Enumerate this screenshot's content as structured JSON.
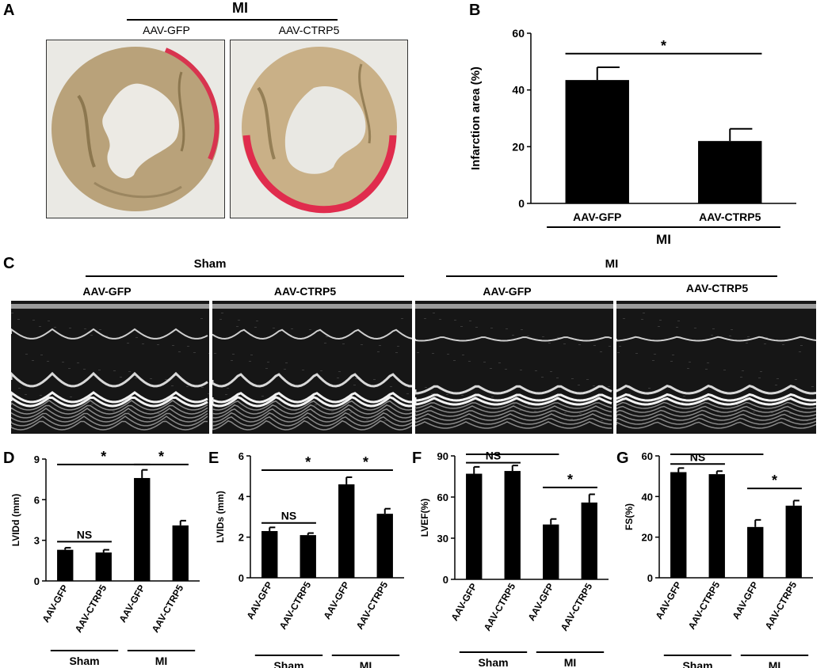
{
  "panels": {
    "A": "A",
    "B": "B",
    "C": "C",
    "D": "D",
    "E": "E",
    "F": "F",
    "G": "G"
  },
  "panel_a": {
    "group": "MI",
    "left_label": "AAV-GFP",
    "right_label": "AAV-CTRP5"
  },
  "panel_c": {
    "group_sham": "Sham",
    "group_mi": "MI",
    "labels": [
      "AAV-GFP",
      "AAV-CTRP5",
      "AAV-GFP",
      "AAV-CTRP5"
    ]
  },
  "chart_data": [
    {
      "panel": "B",
      "type": "bar",
      "categories": [
        "AAV-GFP",
        "AAV-CTRP5"
      ],
      "values": [
        43.5,
        22
      ],
      "errors": [
        4.5,
        4.3
      ],
      "ylabel": "Infarction area (%)",
      "ylim": [
        0,
        60
      ],
      "yticks": [
        0,
        20,
        40,
        60
      ],
      "groups": [
        {
          "label": "MI",
          "span": [
            0,
            1
          ]
        }
      ],
      "annotations": [
        {
          "text": "*",
          "span": [
            0,
            1
          ]
        }
      ]
    },
    {
      "panel": "D",
      "type": "bar",
      "categories": [
        "AAV-GFP",
        "AAV-CTRP5",
        "AAV-GFP",
        "AAV-CTRP5"
      ],
      "values": [
        2.3,
        2.1,
        7.6,
        4.1
      ],
      "errors": [
        0.15,
        0.2,
        0.6,
        0.35
      ],
      "ylabel": "LVIDd (mm)",
      "ylim": [
        0,
        9
      ],
      "yticks": [
        0,
        3,
        6,
        9
      ],
      "groups": [
        {
          "label": "Sham",
          "span": [
            0,
            1
          ]
        },
        {
          "label": "MI",
          "span": [
            2,
            3
          ]
        }
      ],
      "annotations": [
        {
          "text": "NS",
          "span": [
            0,
            1
          ],
          "level": 2.9
        },
        {
          "text": "*",
          "span": [
            0,
            2
          ],
          "level": 8.6
        },
        {
          "text": "*",
          "span": [
            2,
            3
          ],
          "level": 8.6
        }
      ]
    },
    {
      "panel": "E",
      "type": "bar",
      "categories": [
        "AAV-GFP",
        "AAV-CTRP5",
        "AAV-GFP",
        "AAV-CTRP5"
      ],
      "values": [
        2.3,
        2.1,
        4.6,
        3.15
      ],
      "errors": [
        0.18,
        0.1,
        0.35,
        0.25
      ],
      "ylabel": "LVIDs (mm)",
      "ylim": [
        0,
        6
      ],
      "yticks": [
        0,
        2,
        4,
        6
      ],
      "groups": [
        {
          "label": "Sham",
          "span": [
            0,
            1
          ]
        },
        {
          "label": "MI",
          "span": [
            2,
            3
          ]
        }
      ],
      "annotations": [
        {
          "text": "NS",
          "span": [
            0,
            1
          ],
          "level": 2.7
        },
        {
          "text": "*",
          "span": [
            0,
            2
          ],
          "level": 5.3
        },
        {
          "text": "*",
          "span": [
            2,
            3
          ],
          "level": 5.3
        }
      ]
    },
    {
      "panel": "F",
      "type": "bar",
      "categories": [
        "AAV-GFP",
        "AAV-CTRP5",
        "AAV-GFP",
        "AAV-CTRP5"
      ],
      "values": [
        77,
        79,
        40,
        56
      ],
      "errors": [
        5,
        4,
        4,
        6
      ],
      "ylabel": "LVEF(%)",
      "ylim": [
        0,
        90
      ],
      "yticks": [
        0,
        30,
        60,
        90
      ],
      "groups": [
        {
          "label": "Sham",
          "span": [
            0,
            1
          ]
        },
        {
          "label": "MI",
          "span": [
            2,
            3
          ]
        }
      ],
      "annotations": [
        {
          "text": "NS",
          "span": [
            0,
            1
          ],
          "level": 85
        },
        {
          "text": "*",
          "span": [
            0,
            2
          ],
          "level": 92
        },
        {
          "text": "*",
          "span": [
            2,
            3
          ],
          "level": 67
        }
      ]
    },
    {
      "panel": "G",
      "type": "bar",
      "categories": [
        "AAV-GFP",
        "AAV-CTRP5",
        "AAV-GFP",
        "AAV-CTRP5"
      ],
      "values": [
        52,
        51,
        25,
        35.5
      ],
      "errors": [
        2,
        1.5,
        3.5,
        2.5
      ],
      "ylabel": "FS(%)",
      "ylim": [
        0,
        60
      ],
      "yticks": [
        0,
        20,
        40,
        60
      ],
      "groups": [
        {
          "label": "Sham",
          "span": [
            0,
            1
          ]
        },
        {
          "label": "MI",
          "span": [
            2,
            3
          ]
        }
      ],
      "annotations": [
        {
          "text": "NS",
          "span": [
            0,
            1
          ],
          "level": 56
        },
        {
          "text": "*",
          "span": [
            0,
            2
          ],
          "level": 61
        },
        {
          "text": "*",
          "span": [
            2,
            3
          ],
          "level": 44
        }
      ]
    }
  ]
}
